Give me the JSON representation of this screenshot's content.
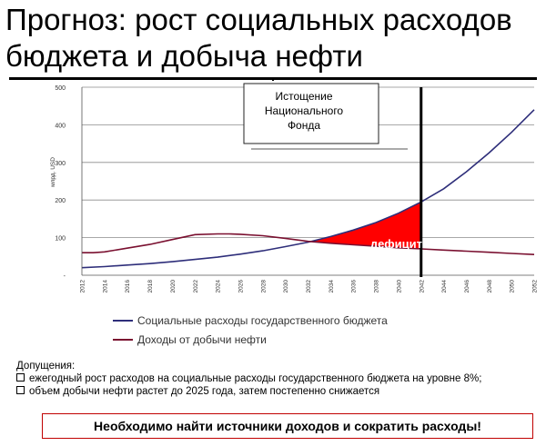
{
  "slide": {
    "title": "Прогноз: рост социальных расходов бюджета и добыча нефти"
  },
  "annotations": {
    "depletion_box": [
      "Истощение",
      "Национального",
      "Фонда"
    ],
    "deficit_label": "дефицит",
    "deficit_fill": "#ff0000",
    "depletion_line_year": 2042
  },
  "assumptions": {
    "heading": "Допущения:",
    "items": [
      "ежегодный рост расходов на социальные расходы государственного бюджета на уровне 8%;",
      "объем добычи нефти растет до 2025 года, затем постепенно снижается"
    ]
  },
  "callout": {
    "text": "Необходимо найти источники доходов и сократить расходы!",
    "border_color": "#c00000"
  },
  "chart_data": {
    "type": "line",
    "title": "",
    "xlabel": "",
    "ylabel": "млрд. USD",
    "xlim": [
      2012,
      2052
    ],
    "ylim": [
      0,
      500
    ],
    "yticks": [
      "-",
      "100",
      "200",
      "300",
      "400",
      "500"
    ],
    "ytick_values": [
      0,
      100,
      200,
      300,
      400,
      500
    ],
    "x_ticks": [
      2012,
      2014,
      2016,
      2018,
      2020,
      2022,
      2024,
      2026,
      2028,
      2030,
      2032,
      2034,
      2036,
      2038,
      2040,
      2042,
      2044,
      2046,
      2048,
      2050,
      2052
    ],
    "grid": true,
    "legend_position": "bottom",
    "series": [
      {
        "name": "Социальные расходы государственного бюджета",
        "color": "#2e2e7a",
        "x": [
          2012,
          2014,
          2016,
          2018,
          2020,
          2022,
          2024,
          2026,
          2028,
          2030,
          2032,
          2034,
          2036,
          2038,
          2040,
          2042,
          2044,
          2046,
          2048,
          2050,
          2052
        ],
        "values": [
          20,
          23,
          27,
          31,
          36,
          42,
          48,
          56,
          65,
          76,
          88,
          103,
          120,
          140,
          165,
          195,
          230,
          275,
          325,
          380,
          440
        ]
      },
      {
        "name": "Доходы от добычи нефти",
        "color": "#7a1030",
        "x": [
          2012,
          2013,
          2014,
          2016,
          2018,
          2020,
          2022,
          2024,
          2025,
          2026,
          2028,
          2030,
          2032,
          2034,
          2036,
          2038,
          2040,
          2042,
          2044,
          2046,
          2048,
          2050,
          2052
        ],
        "values": [
          60,
          60,
          62,
          72,
          82,
          95,
          108,
          110,
          110,
          109,
          105,
          98,
          90,
          85,
          81,
          77,
          73,
          70,
          67,
          64,
          61,
          58,
          55
        ]
      }
    ]
  }
}
